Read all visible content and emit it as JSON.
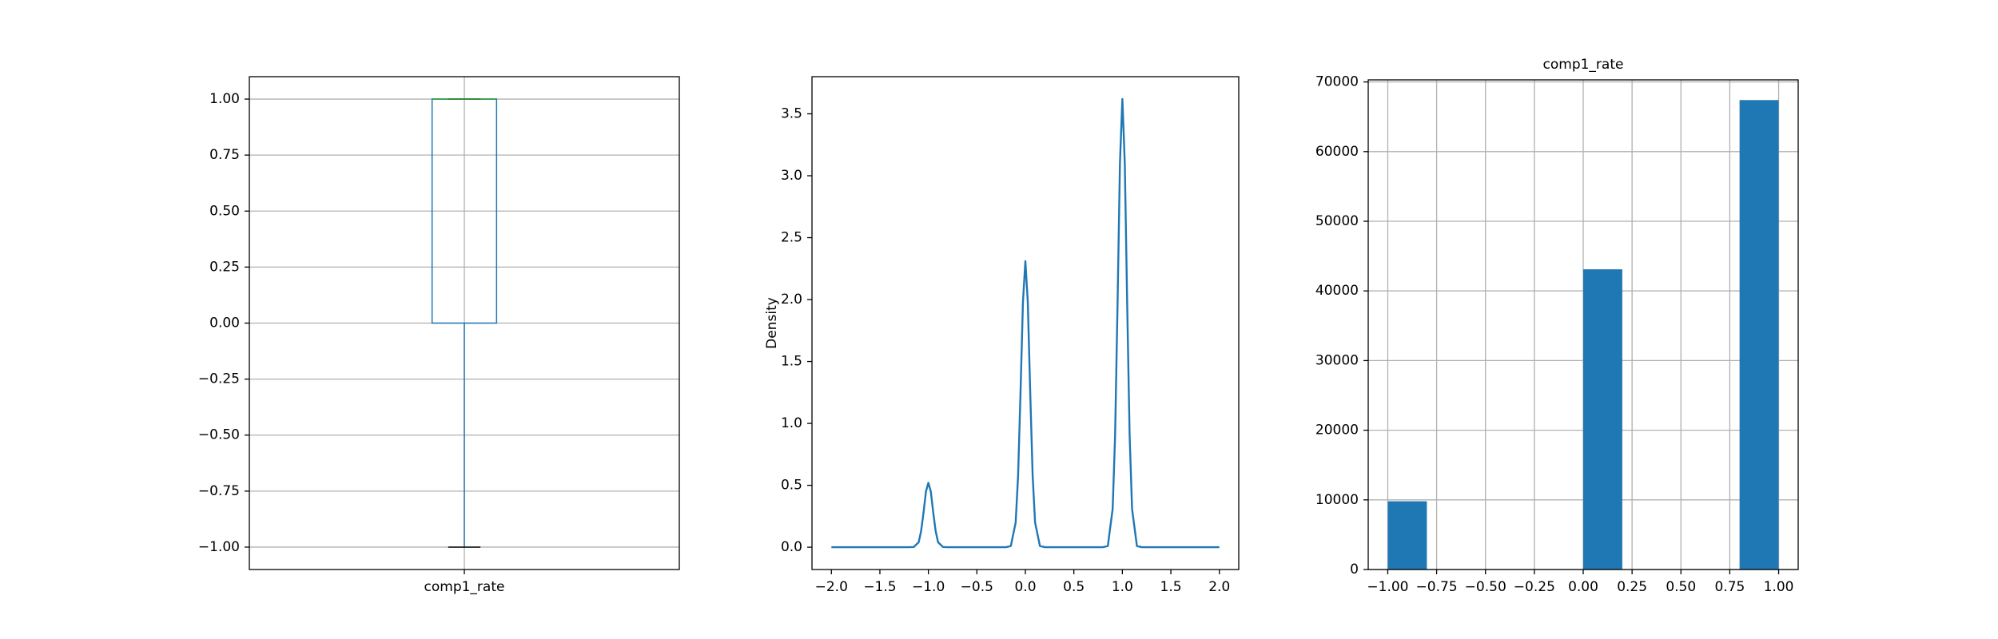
{
  "chart_data": [
    {
      "type": "box",
      "categories": [
        "comp1_rate"
      ],
      "boxes": [
        {
          "whislo": -1,
          "q1": 0,
          "med": 1,
          "q3": 1,
          "whishi": 1
        }
      ],
      "color": "#1f77b4",
      "median_color": "#2ca02c",
      "ylim": [
        -1.1,
        1.1
      ],
      "yticks": [
        {
          "value": -1,
          "label": "−1.00"
        },
        {
          "value": -0.75,
          "label": "−0.75"
        },
        {
          "value": -0.5,
          "label": "−0.50"
        },
        {
          "value": -0.25,
          "label": "−0.25"
        },
        {
          "value": 0,
          "label": "0.00"
        },
        {
          "value": 0.25,
          "label": "0.25"
        },
        {
          "value": 0.5,
          "label": "0.50"
        },
        {
          "value": 0.75,
          "label": "0.75"
        },
        {
          "value": 1,
          "label": "1.00"
        }
      ],
      "grid": true
    },
    {
      "type": "line",
      "ylabel": "Density",
      "color": "#1f77b4",
      "x": [
        -2,
        -1.5,
        -1.2,
        -1.15,
        -1.1,
        -1.075,
        -1.05,
        -1.025,
        -1,
        -0.975,
        -0.95,
        -0.925,
        -0.9,
        -0.85,
        -0.8,
        -0.5,
        -0.2,
        -0.15,
        -0.1,
        -0.075,
        -0.05,
        -0.025,
        0,
        0.025,
        0.05,
        0.075,
        0.1,
        0.15,
        0.2,
        0.5,
        0.8,
        0.85,
        0.9,
        0.925,
        0.95,
        0.975,
        1,
        1.025,
        1.05,
        1.075,
        1.1,
        1.15,
        1.2,
        1.5,
        2
      ],
      "values": [
        0,
        0,
        0,
        0.002,
        0.04,
        0.13,
        0.28,
        0.45,
        0.52,
        0.45,
        0.28,
        0.13,
        0.04,
        0.002,
        0,
        0,
        0,
        0.01,
        0.2,
        0.58,
        1.25,
        1.98,
        2.31,
        1.98,
        1.25,
        0.58,
        0.2,
        0.01,
        0,
        0,
        0,
        0.01,
        0.31,
        0.9,
        1.95,
        3.1,
        3.62,
        3.1,
        1.95,
        0.9,
        0.31,
        0.01,
        0,
        0,
        0
      ],
      "xlim": [
        -2.2,
        2.2
      ],
      "ylim": [
        -0.18,
        3.8
      ],
      "xticks": [
        {
          "value": -2,
          "label": "−2.0"
        },
        {
          "value": -1.5,
          "label": "−1.5"
        },
        {
          "value": -1,
          "label": "−1.0"
        },
        {
          "value": -0.5,
          "label": "−0.5"
        },
        {
          "value": 0,
          "label": "0.0"
        },
        {
          "value": 0.5,
          "label": "0.5"
        },
        {
          "value": 1,
          "label": "1.0"
        },
        {
          "value": 1.5,
          "label": "1.5"
        },
        {
          "value": 2,
          "label": "2.0"
        }
      ],
      "yticks": [
        {
          "value": 0,
          "label": "0.0"
        },
        {
          "value": 0.5,
          "label": "0.5"
        },
        {
          "value": 1,
          "label": "1.0"
        },
        {
          "value": 1.5,
          "label": "1.5"
        },
        {
          "value": 2,
          "label": "2.0"
        },
        {
          "value": 2.5,
          "label": "2.5"
        },
        {
          "value": 3,
          "label": "3.0"
        },
        {
          "value": 3.5,
          "label": "3.5"
        }
      ],
      "grid": false
    },
    {
      "type": "histogram",
      "title": "comp1_rate",
      "color": "#1f77b4",
      "bins": [
        -1,
        -0.8,
        -0.6,
        -0.4,
        -0.2,
        0,
        0.2,
        0.4,
        0.6,
        0.8,
        1
      ],
      "values": [
        9800,
        0,
        0,
        0,
        0,
        43100,
        0,
        0,
        0,
        67400
      ],
      "xlim": [
        -1.1,
        1.1
      ],
      "ylim": [
        0,
        70300
      ],
      "xticks": [
        {
          "value": -1,
          "label": "−1.00"
        },
        {
          "value": -0.75,
          "label": "−0.75"
        },
        {
          "value": -0.5,
          "label": "−0.50"
        },
        {
          "value": -0.25,
          "label": "−0.25"
        },
        {
          "value": 0,
          "label": "0.00"
        },
        {
          "value": 0.25,
          "label": "0.25"
        },
        {
          "value": 0.5,
          "label": "0.50"
        },
        {
          "value": 0.75,
          "label": "0.75"
        },
        {
          "value": 1,
          "label": "1.00"
        }
      ],
      "yticks": [
        0,
        10000,
        20000,
        30000,
        40000,
        50000,
        60000,
        70000
      ],
      "grid": true
    }
  ]
}
